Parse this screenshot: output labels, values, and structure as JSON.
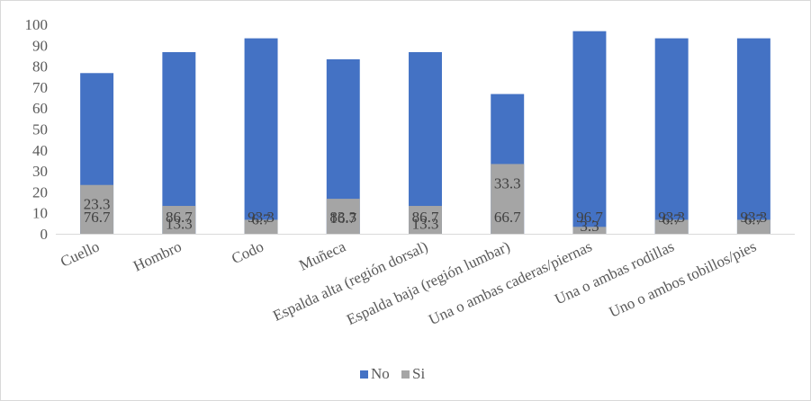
{
  "chart_data": {
    "type": "bar",
    "stacked": true,
    "categories": [
      "Cuello",
      "Hombro",
      "Codo",
      "Muñeca",
      "Espalda alta (región dorsal)",
      "Espalda baja (región lumbar)",
      "Una o ambas caderas/piernas",
      "Una o ambas rodillas",
      "Uno o ambos tobillos/pies"
    ],
    "series": [
      {
        "name": "No",
        "color": "#4472c4",
        "values": [
          76.7,
          86.7,
          93.3,
          83.3,
          86.7,
          66.7,
          96.7,
          93.3,
          93.3
        ]
      },
      {
        "name": "Si",
        "color": "#a5a5a5",
        "values": [
          23.3,
          13.3,
          6.7,
          16.7,
          13.3,
          33.3,
          3.3,
          6.7,
          6.7
        ]
      }
    ],
    "title": "",
    "xlabel": "",
    "ylabel": "",
    "ylim": [
      0,
      100
    ],
    "yticks": [
      0,
      10,
      20,
      30,
      40,
      50,
      60,
      70,
      80,
      90,
      100
    ],
    "grid": false,
    "legend": "bottom"
  }
}
